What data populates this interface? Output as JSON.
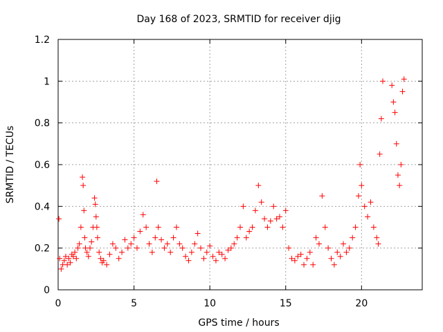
{
  "chart_data": {
    "type": "scatter",
    "title": "Day 168 of 2023, SRMTID for receiver djig",
    "xlabel": "GPS time / hours",
    "ylabel": "SRMTID / TECUs",
    "xlim": [
      0,
      24
    ],
    "ylim": [
      0,
      1.2
    ],
    "x_ticks": [
      0,
      5,
      10,
      15,
      20
    ],
    "x_tick_labels": [
      "0",
      "5",
      "10",
      "15",
      "20"
    ],
    "y_ticks": [
      0,
      0.2,
      0.4,
      0.6,
      0.8,
      1.0,
      1.2
    ],
    "y_tick_labels": [
      "0",
      "0.2",
      "0.4",
      "0.6",
      "0.8",
      "1",
      "1.2"
    ],
    "grid": true,
    "marker": "plus",
    "color": "#ff0000",
    "series": [
      {
        "name": "SRMTID",
        "x": [
          0.05,
          0.1,
          0.2,
          0.3,
          0.4,
          0.5,
          0.6,
          0.7,
          0.8,
          0.9,
          1.0,
          1.1,
          1.2,
          1.3,
          1.4,
          1.5,
          1.6,
          1.65,
          1.7,
          1.75,
          1.8,
          1.9,
          2.0,
          2.1,
          2.2,
          2.3,
          2.4,
          2.45,
          2.5,
          2.55,
          2.6,
          2.7,
          2.8,
          2.9,
          3.0,
          3.2,
          3.4,
          3.6,
          3.8,
          4.0,
          4.2,
          4.4,
          4.6,
          4.8,
          5.0,
          5.2,
          5.4,
          5.6,
          5.8,
          6.0,
          6.2,
          6.4,
          6.5,
          6.6,
          6.8,
          7.0,
          7.2,
          7.4,
          7.6,
          7.8,
          8.0,
          8.2,
          8.4,
          8.6,
          8.8,
          9.0,
          9.2,
          9.4,
          9.6,
          9.8,
          10.0,
          10.2,
          10.4,
          10.6,
          10.8,
          11.0,
          11.2,
          11.4,
          11.6,
          11.8,
          12.0,
          12.2,
          12.4,
          12.6,
          12.8,
          13.0,
          13.2,
          13.4,
          13.6,
          13.8,
          14.0,
          14.2,
          14.4,
          14.6,
          14.8,
          15.0,
          15.2,
          15.4,
          15.6,
          15.8,
          16.0,
          16.2,
          16.4,
          16.6,
          16.8,
          17.0,
          17.2,
          17.4,
          17.6,
          17.8,
          18.0,
          18.2,
          18.4,
          18.6,
          18.8,
          19.0,
          19.2,
          19.4,
          19.6,
          19.8,
          19.9,
          20.0,
          20.2,
          20.4,
          20.6,
          20.8,
          21.0,
          21.1,
          21.2,
          21.3,
          21.4,
          22.0,
          22.1,
          22.2,
          22.3,
          22.4,
          22.5,
          22.6,
          22.7,
          22.8
        ],
        "y": [
          0.34,
          0.15,
          0.1,
          0.12,
          0.14,
          0.16,
          0.12,
          0.15,
          0.13,
          0.17,
          0.16,
          0.18,
          0.15,
          0.2,
          0.22,
          0.3,
          0.54,
          0.5,
          0.38,
          0.25,
          0.2,
          0.18,
          0.16,
          0.2,
          0.23,
          0.3,
          0.44,
          0.41,
          0.35,
          0.3,
          0.25,
          0.18,
          0.15,
          0.13,
          0.14,
          0.12,
          0.17,
          0.22,
          0.2,
          0.15,
          0.18,
          0.24,
          0.2,
          0.22,
          0.25,
          0.2,
          0.28,
          0.36,
          0.3,
          0.22,
          0.18,
          0.25,
          0.52,
          0.3,
          0.24,
          0.2,
          0.22,
          0.18,
          0.25,
          0.3,
          0.22,
          0.2,
          0.16,
          0.14,
          0.18,
          0.22,
          0.27,
          0.2,
          0.15,
          0.18,
          0.21,
          0.16,
          0.14,
          0.18,
          0.17,
          0.15,
          0.19,
          0.2,
          0.22,
          0.25,
          0.3,
          0.4,
          0.25,
          0.28,
          0.3,
          0.38,
          0.5,
          0.42,
          0.34,
          0.3,
          0.33,
          0.4,
          0.34,
          0.35,
          0.3,
          0.38,
          0.2,
          0.15,
          0.14,
          0.16,
          0.17,
          0.12,
          0.15,
          0.18,
          0.12,
          0.25,
          0.22,
          0.45,
          0.3,
          0.2,
          0.15,
          0.12,
          0.18,
          0.16,
          0.22,
          0.18,
          0.2,
          0.25,
          0.3,
          0.45,
          0.6,
          0.5,
          0.4,
          0.35,
          0.42,
          0.3,
          0.25,
          0.22,
          0.65,
          0.82,
          1.0,
          0.98,
          0.9,
          0.85,
          0.7,
          0.55,
          0.5,
          0.6,
          0.95,
          1.01
        ]
      }
    ]
  }
}
